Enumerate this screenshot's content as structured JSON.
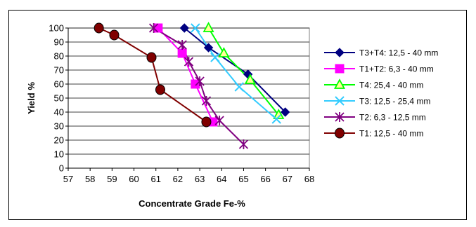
{
  "chart_data": {
    "type": "line",
    "title": "",
    "xlabel": "Concentrate Grade Fe-%",
    "ylabel": "Yield %",
    "xlim": [
      57,
      68
    ],
    "ylim": [
      0,
      100
    ],
    "x_ticks": [
      "57",
      "58",
      "59",
      "60",
      "61",
      "62",
      "63",
      "64",
      "65",
      "66",
      "67",
      "68"
    ],
    "y_ticks": [
      "0",
      "10",
      "20",
      "30",
      "40",
      "50",
      "60",
      "70",
      "80",
      "90",
      "100"
    ],
    "grid": "horizontal",
    "legend_position": "right",
    "series": [
      {
        "name": "T3+T4: 12,5 - 40 mm",
        "color": "#000080",
        "marker": "diamond",
        "points": [
          [
            62.3,
            100
          ],
          [
            63.4,
            86
          ],
          [
            65.2,
            67
          ],
          [
            66.9,
            40
          ]
        ]
      },
      {
        "name": "T1+T2: 6,3 - 40 mm",
        "color": "#FF00FF",
        "marker": "square",
        "points": [
          [
            61.1,
            100
          ],
          [
            62.2,
            82
          ],
          [
            62.8,
            60
          ],
          [
            63.6,
            33
          ]
        ]
      },
      {
        "name": "T4: 25,4 - 40 mm",
        "color": "#00FF00",
        "marker": "triangle",
        "points": [
          [
            63.4,
            100
          ],
          [
            64.1,
            82
          ],
          [
            65.3,
            63
          ],
          [
            66.6,
            38
          ]
        ]
      },
      {
        "name": "T3: 12,5 - 25,4 mm",
        "color": "#33CCFF",
        "marker": "x",
        "points": [
          [
            62.8,
            100
          ],
          [
            63.7,
            79
          ],
          [
            64.8,
            58
          ],
          [
            66.5,
            35
          ]
        ]
      },
      {
        "name": "T2: 6,3 - 12,5 mm",
        "color": "#800080",
        "marker": "star",
        "points": [
          [
            60.9,
            100
          ],
          [
            62.2,
            88
          ],
          [
            62.5,
            76
          ],
          [
            63.0,
            62
          ],
          [
            63.3,
            48
          ],
          [
            63.9,
            34
          ],
          [
            65.0,
            17
          ]
        ]
      },
      {
        "name": "T1: 12,5 - 40 mm",
        "color": "#800000",
        "marker": "circle",
        "points": [
          [
            58.4,
            100
          ],
          [
            59.1,
            95
          ],
          [
            60.8,
            79
          ],
          [
            61.2,
            56
          ],
          [
            63.3,
            33
          ]
        ]
      }
    ]
  }
}
